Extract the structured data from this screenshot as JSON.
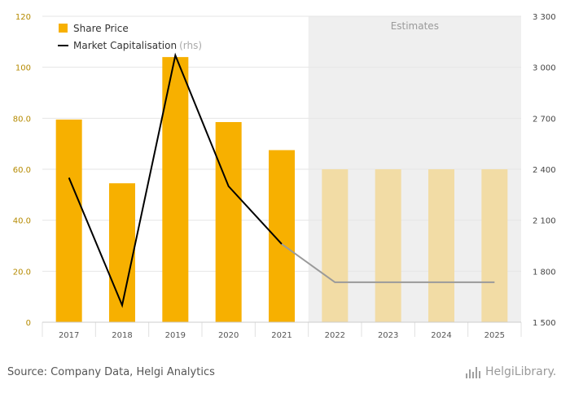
{
  "chart_data": {
    "type": "bar+line",
    "categories": [
      "2017",
      "2018",
      "2019",
      "2020",
      "2021",
      "2022",
      "2023",
      "2024",
      "2025"
    ],
    "estimates_from_index": 5,
    "estimates_label": "Estimates",
    "series": [
      {
        "name": "Share Price",
        "type": "bar",
        "axis": "left",
        "values": [
          79.5,
          54.5,
          104,
          78.5,
          67.5,
          60,
          60,
          60,
          60
        ]
      },
      {
        "name": "Market Capitalisation",
        "type": "line",
        "axis": "right",
        "values": [
          2350,
          1600,
          3070,
          2300,
          1960,
          1735,
          1735,
          1735,
          1735
        ]
      }
    ],
    "legend": [
      {
        "label": "Share Price",
        "suffix": ""
      },
      {
        "label": "Market Capitalisation",
        "suffix": "(rhs)"
      }
    ],
    "y_left": {
      "ylim": [
        0,
        120
      ],
      "ticks": [
        "0",
        "20.0",
        "40.0",
        "60.0",
        "80.0",
        "100",
        "120"
      ]
    },
    "y_right": {
      "ylim": [
        1500,
        3300
      ],
      "ticks": [
        "1 500",
        "1 800",
        "2 100",
        "2 400",
        "2 700",
        "3 000",
        "3 300"
      ]
    },
    "grid": true,
    "legend_placement": "top-left",
    "colors": {
      "bar_actual": "#F7B000",
      "bar_estimate": "#F2DCA5",
      "line_actual": "#000000",
      "line_estimate": "#9a9a9a",
      "estimate_bg": "#efefef"
    }
  },
  "footer": {
    "source": "Source: Company Data, Helgi Analytics",
    "brand": "HelgiLibrary."
  }
}
